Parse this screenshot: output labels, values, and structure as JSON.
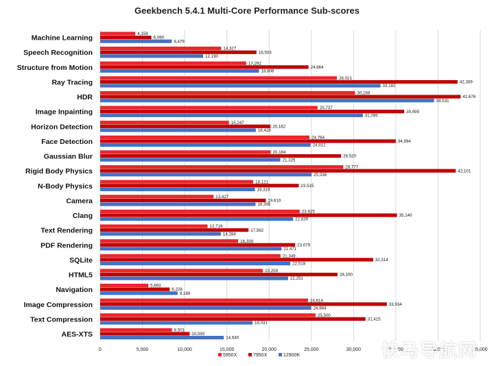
{
  "chart_data": {
    "type": "bar",
    "orientation": "horizontal",
    "title": "Geekbench 5.4.1 Multi-Core Performance Sub-scores",
    "categories": [
      "Machine Learning",
      "Speech Recognition",
      "Structure from Motion",
      "Ray Tracing",
      "HDR",
      "Image Inpainting",
      "Horizon Detection",
      "Face Detection",
      "Gaussian Blur",
      "Rigid Body Physics",
      "N-Body Physics",
      "Camera",
      "Clang",
      "Text Rendering",
      "PDF Rendering",
      "SQLite",
      "HTML5",
      "Navigation",
      "Image Compression",
      "Text Compression",
      "AES-XTS"
    ],
    "series": [
      {
        "name": "5950X",
        "color": "#e8272c",
        "values": [
          4158,
          14327,
          17292,
          28021,
          30168,
          25737,
          15247,
          24784,
          20184,
          28777,
          18121,
          13427,
          23625,
          12716,
          16339,
          21349,
          19259,
          5693,
          24614,
          25500,
          8501
        ]
      },
      {
        "name": "7950X",
        "color": "#c00000",
        "values": [
          6060,
          18503,
          24664,
          42309,
          42676,
          35995,
          20162,
          34994,
          28520,
          42101,
          23515,
          19610,
          35140,
          17562,
          23079,
          32314,
          28100,
          8228,
          33934,
          31415,
          10593
        ]
      },
      {
        "name": "12900K",
        "color": "#4472c4",
        "values": [
          8479,
          12190,
          18806,
          33182,
          39531,
          31095,
          18428,
          24912,
          21325,
          25036,
          18319,
          18395,
          22839,
          14284,
          21471,
          22518,
          22251,
          9169,
          24984,
          18031,
          14640
        ]
      }
    ],
    "data_labels": [
      [
        "4,158",
        "6,060",
        "8,479"
      ],
      [
        "14,327",
        "18,503",
        "12,190"
      ],
      [
        "17,292",
        "24,664",
        "18,806"
      ],
      [
        "28,021",
        "42,309",
        "33,182"
      ],
      [
        "30,168",
        "42,676",
        "39,531"
      ],
      [
        "25,737",
        "35,995",
        "31,095"
      ],
      [
        "15,247",
        "20,162",
        "18,428"
      ],
      [
        "24,784",
        "34,994",
        "24,912"
      ],
      [
        "20,184",
        "28,520",
        "21,325"
      ],
      [
        "28,777",
        "42,101",
        "25,036"
      ],
      [
        "18,121",
        "23,515",
        "18,319"
      ],
      [
        "13,427",
        "19,610",
        "18,395"
      ],
      [
        "23,625",
        "35,140",
        "22,839"
      ],
      [
        "12,716",
        "17,562",
        "14,284"
      ],
      [
        "16,339",
        "23,079",
        "21,471"
      ],
      [
        "21,349",
        "32,314",
        "22,518"
      ],
      [
        "19,259",
        "28,100",
        "22,251"
      ],
      [
        "5,693",
        "8,228",
        "9,169"
      ],
      [
        "24,614",
        "33,934",
        "24,984"
      ],
      [
        "25,500",
        "31,415",
        "18,031"
      ],
      [
        "8,501",
        "10,593",
        "14,640"
      ]
    ],
    "xlim": [
      0,
      45000
    ],
    "xticks": [
      0,
      5000,
      10000,
      15000,
      20000,
      25000,
      30000,
      35000,
      40000,
      45000
    ],
    "xtick_labels": [
      "0",
      "5,000",
      "10,000",
      "15,000",
      "20,000",
      "25,000",
      "30,000",
      "35,000",
      "40,000",
      "45,000"
    ],
    "grid": true,
    "legend_position": "bottom"
  },
  "watermark": "快马导航网"
}
